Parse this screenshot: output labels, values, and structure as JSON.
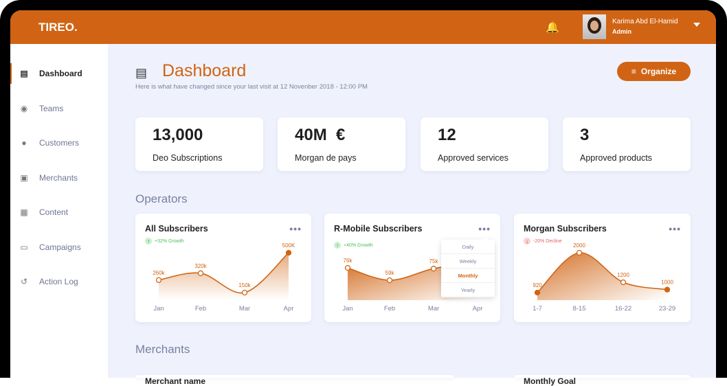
{
  "app": {
    "logo": "TIREO.",
    "user_name": "Karima Abd El-Hamid",
    "user_role": "Admin"
  },
  "sidebar": {
    "items": [
      {
        "label": "Dashboard",
        "icon": "chart-icon",
        "active": true
      },
      {
        "label": "Teams",
        "icon": "teams-icon"
      },
      {
        "label": "Customers",
        "icon": "user-icon"
      },
      {
        "label": "Merchants",
        "icon": "store-icon"
      },
      {
        "label": "Content",
        "icon": "content-icon"
      },
      {
        "label": "Campaigns",
        "icon": "campaign-icon"
      },
      {
        "label": "Action Log",
        "icon": "history-icon"
      }
    ]
  },
  "page": {
    "title": "Dashboard",
    "subtitle": "Here is what have changed since your last visit at 12 Novenber 2018 - 12:00 PM",
    "organize_label": "Organize"
  },
  "stats": [
    {
      "value": "13,000",
      "label": "Deo Subscriptions"
    },
    {
      "value": "40M  €",
      "label": "Morgan de pays"
    },
    {
      "value": "12",
      "label": "Approved services"
    },
    {
      "value": "3",
      "label": "Approved products"
    }
  ],
  "sections": {
    "operators": "Operators",
    "merchants": "Merchants"
  },
  "dropdown": {
    "options": [
      "Daily",
      "Weekly",
      "Monthly",
      "Yearly"
    ],
    "selected": "Monthly"
  },
  "bottom_cards": {
    "left_title": "Merchant name",
    "right_title": "Monthly Goal"
  },
  "colors": {
    "accent": "#d06414",
    "growth": "#4cbf5a",
    "decline": "#e76060",
    "background": "#eff2fd"
  },
  "chart_data": [
    {
      "type": "area",
      "title": "All Subscribers",
      "trend": "+32% Growth",
      "trend_dir": "up",
      "categories": [
        "Jan",
        "Feb",
        "Mar",
        "Apr"
      ],
      "values": [
        260,
        320,
        150,
        500
      ],
      "labels": [
        "260k",
        "320k",
        "150k",
        "500K"
      ]
    },
    {
      "type": "area",
      "title": "R-Mobile Subscribers",
      "trend": "+40% Growth",
      "trend_dir": "up",
      "categories": [
        "Jan",
        "Feb",
        "Mar",
        "Apr"
      ],
      "values": [
        76,
        59,
        75,
        null
      ],
      "labels": [
        "76k",
        "59k",
        "75k",
        ""
      ]
    },
    {
      "type": "area",
      "title": "Morgan Subscribers",
      "trend": "-20% Decline",
      "trend_dir": "down",
      "categories": [
        "1-7",
        "8-15",
        "16-22",
        "23-29"
      ],
      "values": [
        920,
        2000,
        1200,
        1000
      ],
      "labels": [
        "920",
        "2000",
        "1200",
        "1000"
      ]
    }
  ]
}
